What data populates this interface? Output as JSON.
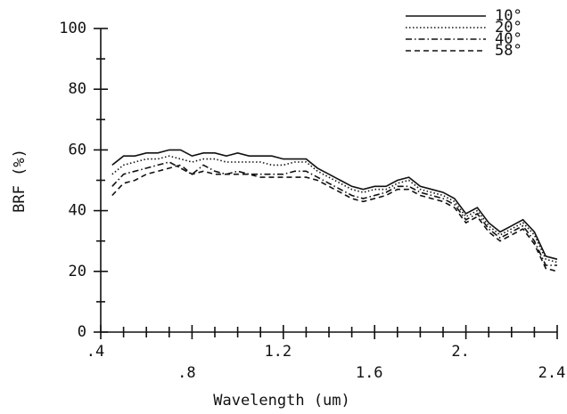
{
  "chart_data": {
    "type": "line",
    "xlabel": "Wavelength (um)",
    "ylabel": "BRF (%)",
    "x": [
      0.45,
      0.5,
      0.55,
      0.6,
      0.65,
      0.7,
      0.75,
      0.8,
      0.85,
      0.9,
      0.95,
      1.0,
      1.05,
      1.1,
      1.15,
      1.2,
      1.25,
      1.3,
      1.35,
      1.4,
      1.45,
      1.5,
      1.55,
      1.6,
      1.65,
      1.7,
      1.75,
      1.8,
      1.85,
      1.9,
      1.95,
      2.0,
      2.05,
      2.1,
      2.15,
      2.2,
      2.25,
      2.3,
      2.35,
      2.4
    ],
    "series": [
      {
        "name": "10°",
        "color": "#111111",
        "style": "solid",
        "values": [
          55,
          58,
          58,
          59,
          59,
          60,
          60,
          58,
          59,
          59,
          58,
          59,
          58,
          58,
          58,
          57,
          57,
          57,
          54,
          52,
          50,
          48,
          47,
          48,
          48,
          50,
          51,
          48,
          47,
          46,
          44,
          39,
          41,
          36,
          33,
          35,
          37,
          33,
          25,
          24
        ]
      },
      {
        "name": "20°",
        "color": "#111111",
        "style": "dotted",
        "values": [
          52,
          55,
          56,
          57,
          57,
          58,
          57,
          56,
          57,
          57,
          56,
          56,
          56,
          56,
          55,
          55,
          56,
          56,
          53,
          51,
          49,
          47,
          46,
          47,
          47,
          49,
          50,
          47,
          46,
          45,
          43,
          38,
          40,
          35,
          32,
          34,
          36,
          32,
          24,
          23
        ]
      },
      {
        "name": "40°",
        "color": "#111111",
        "style": "dashdot",
        "values": [
          48,
          52,
          53,
          54,
          55,
          56,
          54,
          52,
          55,
          53,
          52,
          53,
          52,
          52,
          52,
          52,
          53,
          53,
          51,
          49,
          47,
          45,
          44,
          45,
          46,
          48,
          48,
          46,
          45,
          44,
          42,
          37,
          39,
          34,
          31,
          33,
          35,
          30,
          22,
          22
        ]
      },
      {
        "name": "58°",
        "color": "#111111",
        "style": "dashed",
        "values": [
          45,
          49,
          50,
          52,
          53,
          54,
          55,
          52,
          53,
          52,
          52,
          52,
          52,
          51,
          51,
          51,
          51,
          51,
          50,
          48,
          46,
          44,
          43,
          44,
          45,
          47,
          47,
          45,
          44,
          43,
          41,
          36,
          38,
          33,
          30,
          32,
          34,
          29,
          21,
          20
        ]
      }
    ],
    "xlim": [
      0.4,
      2.4
    ],
    "xticks": [
      {
        "value": 0.4,
        "label": ".4"
      },
      {
        "value": 0.8,
        "label": ".8"
      },
      1.2,
      1.6,
      {
        "value": 2.0,
        "label": "2."
      },
      2.4
    ],
    "xminorticks": [
      0.5,
      0.6,
      0.7,
      0.9,
      1.0,
      1.1,
      1.3,
      1.4,
      1.5,
      1.7,
      1.8,
      1.9,
      2.1,
      2.2,
      2.3
    ],
    "ylim": [
      0,
      100
    ],
    "yticks": [
      0,
      20,
      40,
      60,
      80,
      100
    ],
    "yminorticks": [
      10,
      30,
      50,
      70,
      90
    ],
    "legend": "upper right",
    "grid": false
  }
}
